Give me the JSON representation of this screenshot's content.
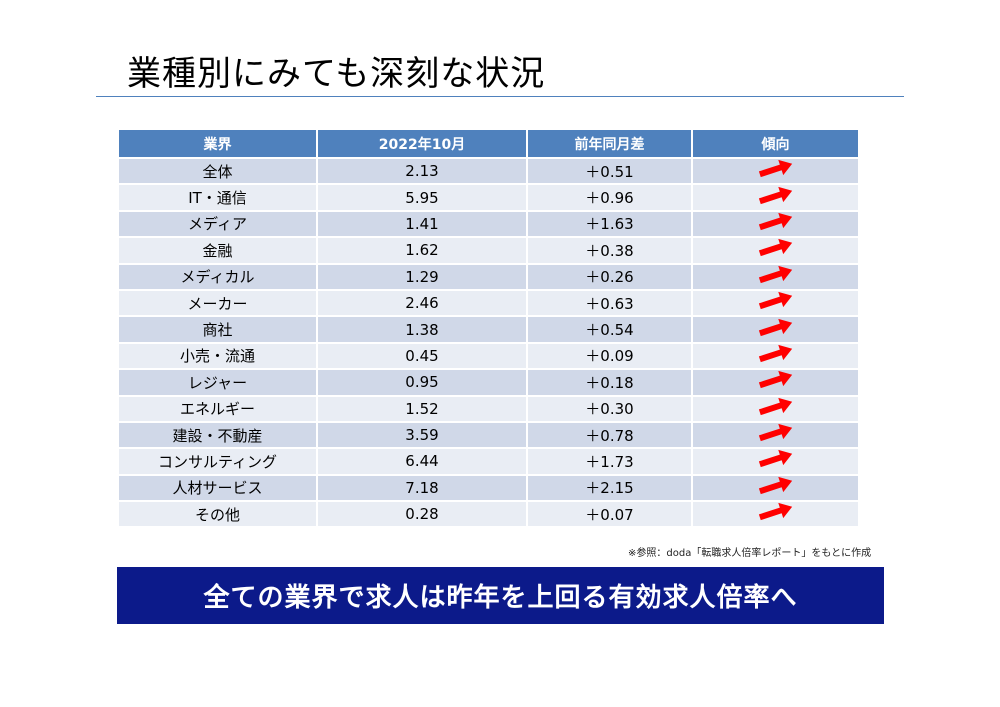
{
  "title": "業種別にみても深刻な状況",
  "table": {
    "headers": [
      "業界",
      "2022年10月",
      "前年同月差",
      "傾向"
    ],
    "rows": [
      {
        "industry": "全体",
        "value": "2.13",
        "diff": "＋0.51",
        "trend": "up"
      },
      {
        "industry": "IT・通信",
        "value": "5.95",
        "diff": "＋0.96",
        "trend": "up"
      },
      {
        "industry": "メディア",
        "value": "1.41",
        "diff": "＋1.63",
        "trend": "up"
      },
      {
        "industry": "金融",
        "value": "1.62",
        "diff": "＋0.38",
        "trend": "up"
      },
      {
        "industry": "メディカル",
        "value": "1.29",
        "diff": "＋0.26",
        "trend": "up"
      },
      {
        "industry": "メーカー",
        "value": "2.46",
        "diff": "＋0.63",
        "trend": "up"
      },
      {
        "industry": "商社",
        "value": "1.38",
        "diff": "＋0.54",
        "trend": "up"
      },
      {
        "industry": "小売・流通",
        "value": "0.45",
        "diff": "＋0.09",
        "trend": "up"
      },
      {
        "industry": "レジャー",
        "value": "0.95",
        "diff": "＋0.18",
        "trend": "up"
      },
      {
        "industry": "エネルギー",
        "value": "1.52",
        "diff": "＋0.30",
        "trend": "up"
      },
      {
        "industry": "建設・不動産",
        "value": "3.59",
        "diff": "＋0.78",
        "trend": "up"
      },
      {
        "industry": "コンサルティング",
        "value": "6.44",
        "diff": "＋1.73",
        "trend": "up"
      },
      {
        "industry": "人材サービス",
        "value": "7.18",
        "diff": "＋2.15",
        "trend": "up"
      },
      {
        "industry": "その他",
        "value": "0.28",
        "diff": "＋0.07",
        "trend": "up"
      }
    ],
    "arrow_icon": "up-right-arrow-icon",
    "arrow_color": "#ff0000"
  },
  "source": "※参照：doda「転職求人倍率レポート」をもとに作成",
  "banner": "全ての業界で求人は昨年を上回る有効求人倍率へ",
  "colors": {
    "header_bg": "#4f81bd",
    "row_odd": "#d0d8e8",
    "row_even": "#e9edf4",
    "banner_bg": "#0c1a8a",
    "rule": "#4f81bd"
  }
}
